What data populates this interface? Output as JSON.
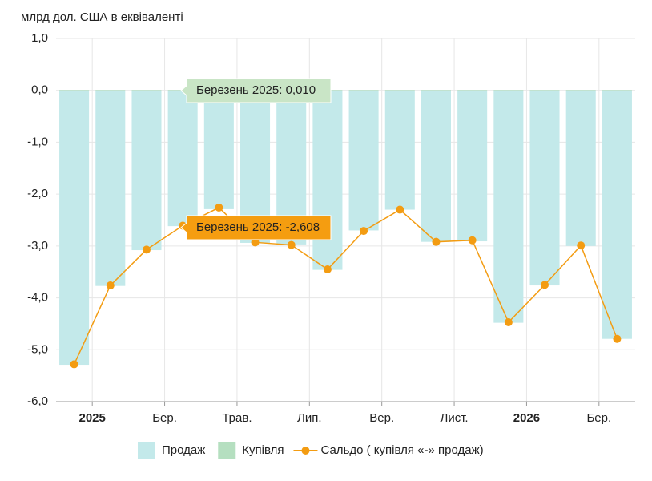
{
  "chart_data": {
    "type": "bar",
    "y_axis_label": "млрд дол. США в еквіваленті",
    "categories": [
      "2025",
      null,
      "Бер.",
      null,
      "Трав.",
      null,
      "Лип.",
      null,
      "Вер.",
      null,
      "Лист.",
      null,
      "2026",
      null,
      "Бер.",
      null
    ],
    "series": [
      {
        "name": "Продаж",
        "type": "bar",
        "color": "#c3e9ea",
        "values": [
          -5.29,
          -3.77,
          -3.08,
          -2.618,
          -2.29,
          -2.94,
          -2.97,
          -3.46,
          -2.7,
          -2.3,
          -2.92,
          -2.91,
          -4.48,
          -3.76,
          -3.0,
          -4.79
        ]
      },
      {
        "name": "Купівля",
        "type": "bar",
        "color": "#b5dfc0",
        "values": [
          0.01,
          0.01,
          0.01,
          0.01,
          0.01,
          0.01,
          0.01,
          0.01,
          0.01,
          0.01,
          0.01,
          0.01,
          0.01,
          0.01,
          0.01,
          0.01
        ]
      },
      {
        "name": "Сальдо ( купівля «-» продаж)",
        "type": "line",
        "color": "#f39c12",
        "values": [
          -5.28,
          -3.76,
          -3.07,
          -2.608,
          -2.26,
          -2.93,
          -2.98,
          -3.45,
          -2.71,
          -2.3,
          -2.92,
          -2.89,
          -4.47,
          -3.75,
          -2.99,
          -4.79
        ]
      }
    ],
    "tooltips": [
      "Березень 2025: 0,010",
      "Березень 2025: -2,608"
    ],
    "ylim": [
      -6,
      1
    ],
    "yticks": [
      {
        "value": 1,
        "label": "1,0"
      },
      {
        "value": 0,
        "label": "0,0"
      },
      {
        "value": -1,
        "label": "-1,0"
      },
      {
        "value": -2,
        "label": "-2,0"
      },
      {
        "value": -3,
        "label": "-3,0"
      },
      {
        "value": -4,
        "label": "-4,0"
      },
      {
        "value": -5,
        "label": "-5,0"
      },
      {
        "value": -6,
        "label": "-6,0"
      }
    ],
    "grid": true
  }
}
